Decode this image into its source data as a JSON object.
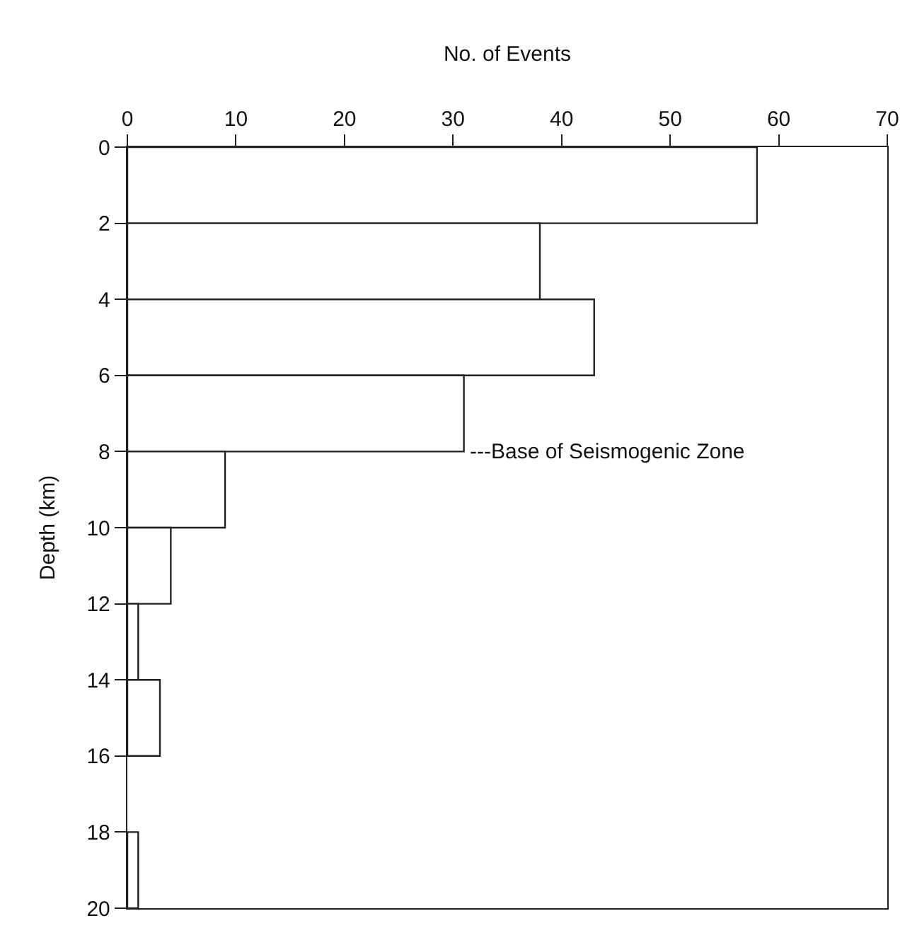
{
  "chart_data": {
    "type": "histogram",
    "orientation": "horizontal",
    "xlabel": "No. of Events",
    "ylabel": "Depth (km)",
    "bins": [
      0,
      2,
      4,
      6,
      8,
      10,
      12,
      14,
      16,
      18,
      20
    ],
    "values": [
      58,
      38,
      43,
      31,
      9,
      4,
      1,
      3,
      0,
      1
    ],
    "color": "#ffffff",
    "xlim": [
      0,
      70
    ],
    "xticks": [
      0,
      10,
      20,
      30,
      40,
      50,
      60,
      70
    ],
    "ylim": [
      20,
      0
    ],
    "yticks": [
      0,
      2,
      4,
      6,
      8,
      10,
      12,
      14,
      16,
      18,
      20
    ],
    "grid": false,
    "annotations": [
      {
        "text": "---Base of Seismogenic Zone",
        "x": 31,
        "y": 8
      }
    ]
  }
}
